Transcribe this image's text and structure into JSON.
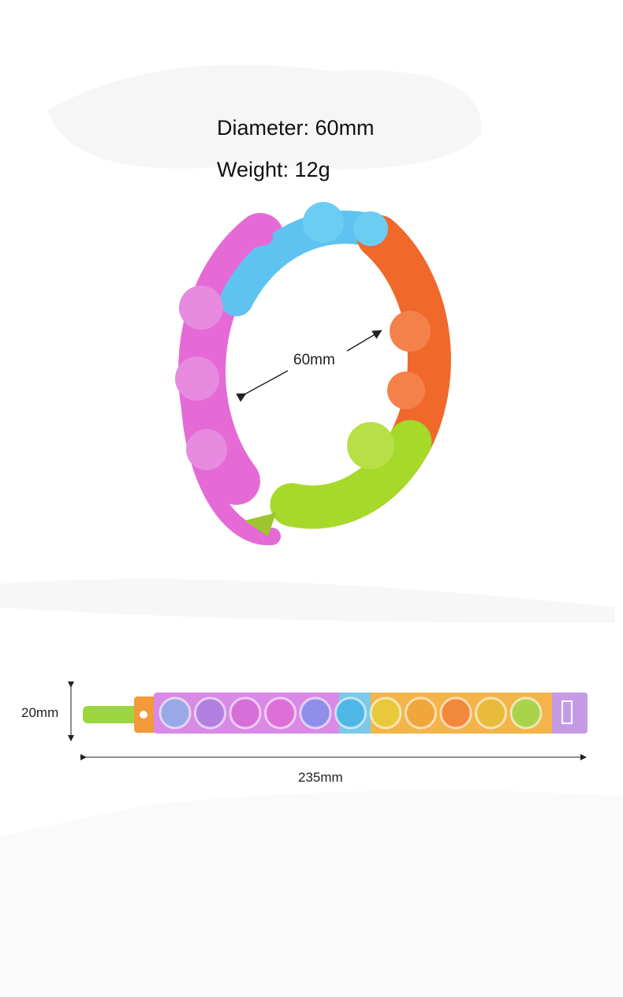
{
  "specs": {
    "diameter": "Diameter: 60mm",
    "weight": "Weight: 12g"
  },
  "ring_label": "60mm",
  "strip": {
    "width_label": "20mm",
    "length_label": "235mm"
  },
  "colors": {
    "blue": "#5ec3f0",
    "pink": "#e66ad6",
    "orange": "#f0682a",
    "green": "#a6d92a",
    "yellow": "#f6c93a"
  }
}
